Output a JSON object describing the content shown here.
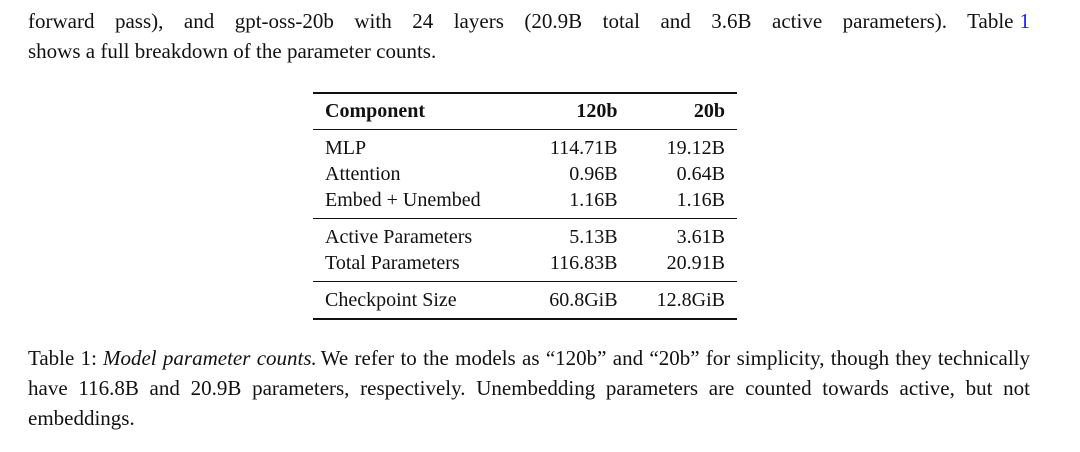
{
  "paragraph": {
    "line1": "forward pass), and gpt-oss-20b with 24 layers (20.9B total and 3.6B active parameters). Table",
    "ref": "1",
    "line2": "shows a full breakdown of the parameter counts."
  },
  "table": {
    "header": [
      "Component",
      "120b",
      "20b"
    ],
    "groups": [
      [
        [
          "MLP",
          "114.71B",
          "19.12B"
        ],
        [
          "Attention",
          "0.96B",
          "0.64B"
        ],
        [
          "Embed + Unembed",
          "1.16B",
          "1.16B"
        ]
      ],
      [
        [
          "Active Parameters",
          "5.13B",
          "3.61B"
        ],
        [
          "Total Parameters",
          "116.83B",
          "20.91B"
        ]
      ],
      [
        [
          "Checkpoint Size",
          "60.8GiB",
          "12.8GiB"
        ]
      ]
    ]
  },
  "caption": {
    "label": "Table 1:",
    "title": "Model parameter counts.",
    "text": "We refer to the models as “120b” and “20b” for simplicity, though they technically have 116.8B and 20.9B parameters, respectively. Unembedding parameters are counted towards active, but not embeddings."
  }
}
